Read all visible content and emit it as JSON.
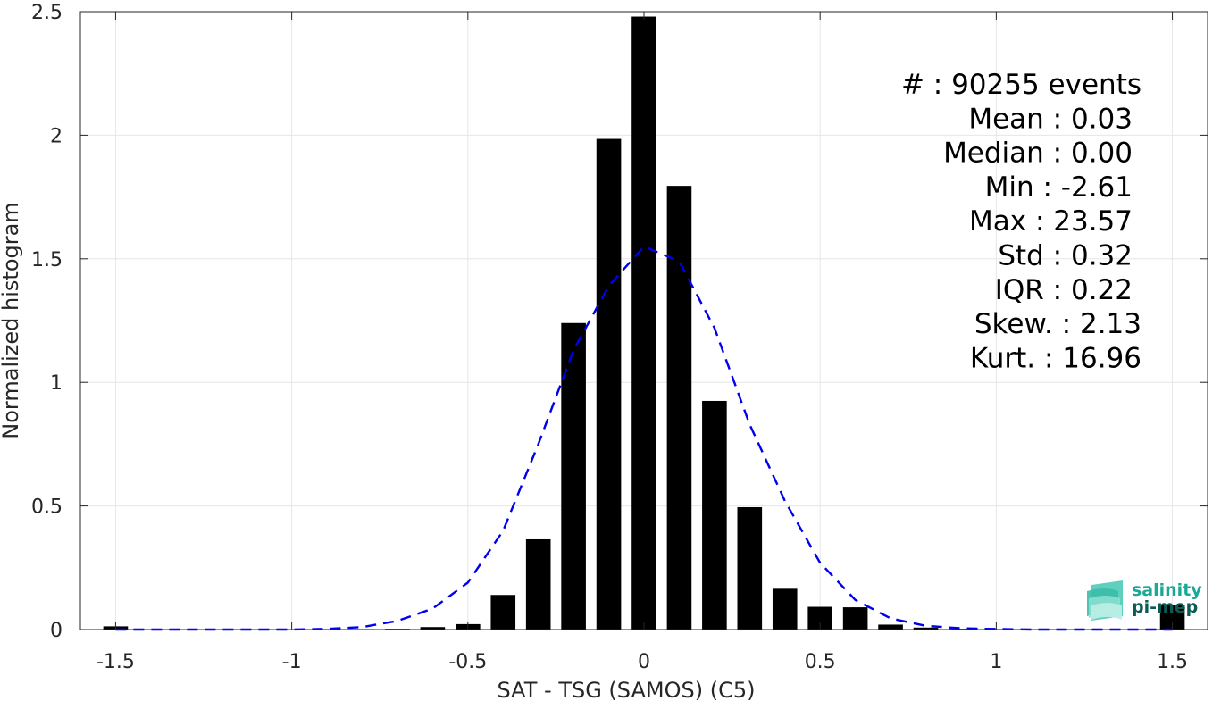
{
  "chart_data": {
    "type": "bar",
    "title": "",
    "xlabel": "SAT - TSG (SAMOS) (C5)",
    "ylabel": "Normalized histogram",
    "xlim": [
      -1.6,
      1.6
    ],
    "ylim": [
      0,
      2.5
    ],
    "x_ticks": [
      -1.5,
      -1,
      -0.5,
      0,
      0.5,
      1,
      1.5
    ],
    "x_tick_labels": [
      "-1.5",
      "-1",
      "-0.5",
      "0",
      "0.5",
      "1",
      "1.5"
    ],
    "y_ticks": [
      0,
      0.5,
      1,
      1.5,
      2,
      2.5
    ],
    "y_tick_labels": [
      "0",
      "0.5",
      "1",
      "1.5",
      "2",
      "2.5"
    ],
    "grid": true,
    "bar_width": 0.07,
    "bars": {
      "x": [
        -1.5,
        -1.4,
        -1.3,
        -1.2,
        -1.1,
        -1.0,
        -0.9,
        -0.8,
        -0.7,
        -0.6,
        -0.5,
        -0.4,
        -0.3,
        -0.2,
        -0.1,
        0.0,
        0.1,
        0.2,
        0.3,
        0.4,
        0.5,
        0.6,
        0.7,
        0.8,
        0.9,
        1.0,
        1.1,
        1.2,
        1.3,
        1.4,
        1.5
      ],
      "values": [
        0.013,
        0.0,
        0.0,
        0.0,
        0.0,
        0.0,
        0.002,
        0.002,
        0.003,
        0.01,
        0.022,
        0.14,
        0.365,
        1.24,
        1.985,
        2.48,
        1.795,
        0.925,
        0.495,
        0.165,
        0.092,
        0.09,
        0.02,
        0.008,
        0.003,
        0.002,
        0.001,
        0.001,
        0.001,
        0.001,
        0.1
      ]
    },
    "gaussian_fit": {
      "style": "dashed",
      "color": "#0000ee",
      "x": [
        -1.5,
        -1.4,
        -1.3,
        -1.2,
        -1.1,
        -1.0,
        -0.9,
        -0.8,
        -0.7,
        -0.6,
        -0.5,
        -0.4,
        -0.3,
        -0.2,
        -0.1,
        0.0,
        0.1,
        0.2,
        0.3,
        0.4,
        0.5,
        0.6,
        0.7,
        0.8,
        0.9,
        1.0,
        1.1,
        1.2,
        1.3,
        1.4,
        1.5
      ],
      "y": [
        0.0,
        0.0,
        0.0,
        0.0,
        0.0,
        0.0,
        0.003,
        0.01,
        0.035,
        0.085,
        0.19,
        0.4,
        0.75,
        1.13,
        1.39,
        1.55,
        1.49,
        1.22,
        0.83,
        0.52,
        0.27,
        0.12,
        0.045,
        0.015,
        0.005,
        0.002,
        0.0,
        0.0,
        0.0,
        0.0,
        0.0
      ]
    },
    "annotations": [
      "#  : 90255 events",
      "Mean : 0.03",
      "Median : 0.00",
      "Min : -2.61",
      "Max : 23.57",
      "Std : 0.32",
      "IQR : 0.22",
      "Skew. : 2.13",
      "Kurt. : 16.96"
    ]
  },
  "logo": {
    "line1": "salinity",
    "line2": "pi-mep",
    "color": "#1aa897",
    "dark": "#0d5c54"
  },
  "colors": {
    "bar": "#000000",
    "grid": "#e6e6e6",
    "axis": "#262626"
  }
}
